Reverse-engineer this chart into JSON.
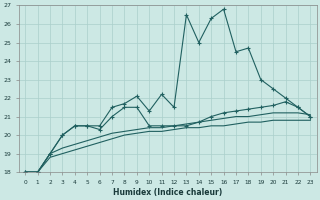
{
  "xlabel": "Humidex (Indice chaleur)",
  "x": [
    0,
    1,
    2,
    3,
    4,
    5,
    6,
    7,
    8,
    9,
    10,
    11,
    12,
    13,
    14,
    15,
    16,
    17,
    18,
    19,
    20,
    21,
    22,
    23
  ],
  "line1": [
    18,
    18,
    19,
    20,
    20.5,
    20.5,
    20.5,
    21.5,
    21.7,
    22.1,
    21.3,
    22.2,
    21.5,
    26.5,
    25.0,
    26.3,
    26.8,
    24.5,
    24.7,
    23.0,
    22.5,
    22.0,
    21.5,
    21.0
  ],
  "line2": [
    18,
    18,
    19,
    20,
    20.5,
    20.5,
    20.3,
    21.0,
    21.5,
    21.5,
    20.5,
    20.5,
    20.5,
    20.5,
    20.7,
    21.0,
    21.2,
    21.3,
    21.4,
    21.5,
    21.6,
    21.8,
    21.5,
    21.0
  ],
  "line3": [
    18,
    18,
    19,
    19.3,
    19.5,
    19.7,
    19.9,
    20.1,
    20.2,
    20.3,
    20.4,
    20.4,
    20.5,
    20.6,
    20.7,
    20.8,
    20.9,
    21.0,
    21.0,
    21.1,
    21.2,
    21.2,
    21.2,
    21.1
  ],
  "line4": [
    18,
    18,
    18.8,
    19.0,
    19.2,
    19.4,
    19.6,
    19.8,
    20.0,
    20.1,
    20.2,
    20.2,
    20.3,
    20.4,
    20.4,
    20.5,
    20.5,
    20.6,
    20.7,
    20.7,
    20.8,
    20.8,
    20.8,
    20.8
  ],
  "ylim": [
    18,
    27
  ],
  "yticks": [
    18,
    19,
    20,
    21,
    22,
    23,
    24,
    25,
    26,
    27
  ],
  "xticks": [
    0,
    1,
    2,
    3,
    4,
    5,
    6,
    7,
    8,
    9,
    10,
    11,
    12,
    13,
    14,
    15,
    16,
    17,
    18,
    19,
    20,
    21,
    22,
    23
  ],
  "line_color": "#206060",
  "bg_color": "#cce8e4",
  "grid_color": "#aacfcb",
  "tick_color": "#1a3a3a"
}
